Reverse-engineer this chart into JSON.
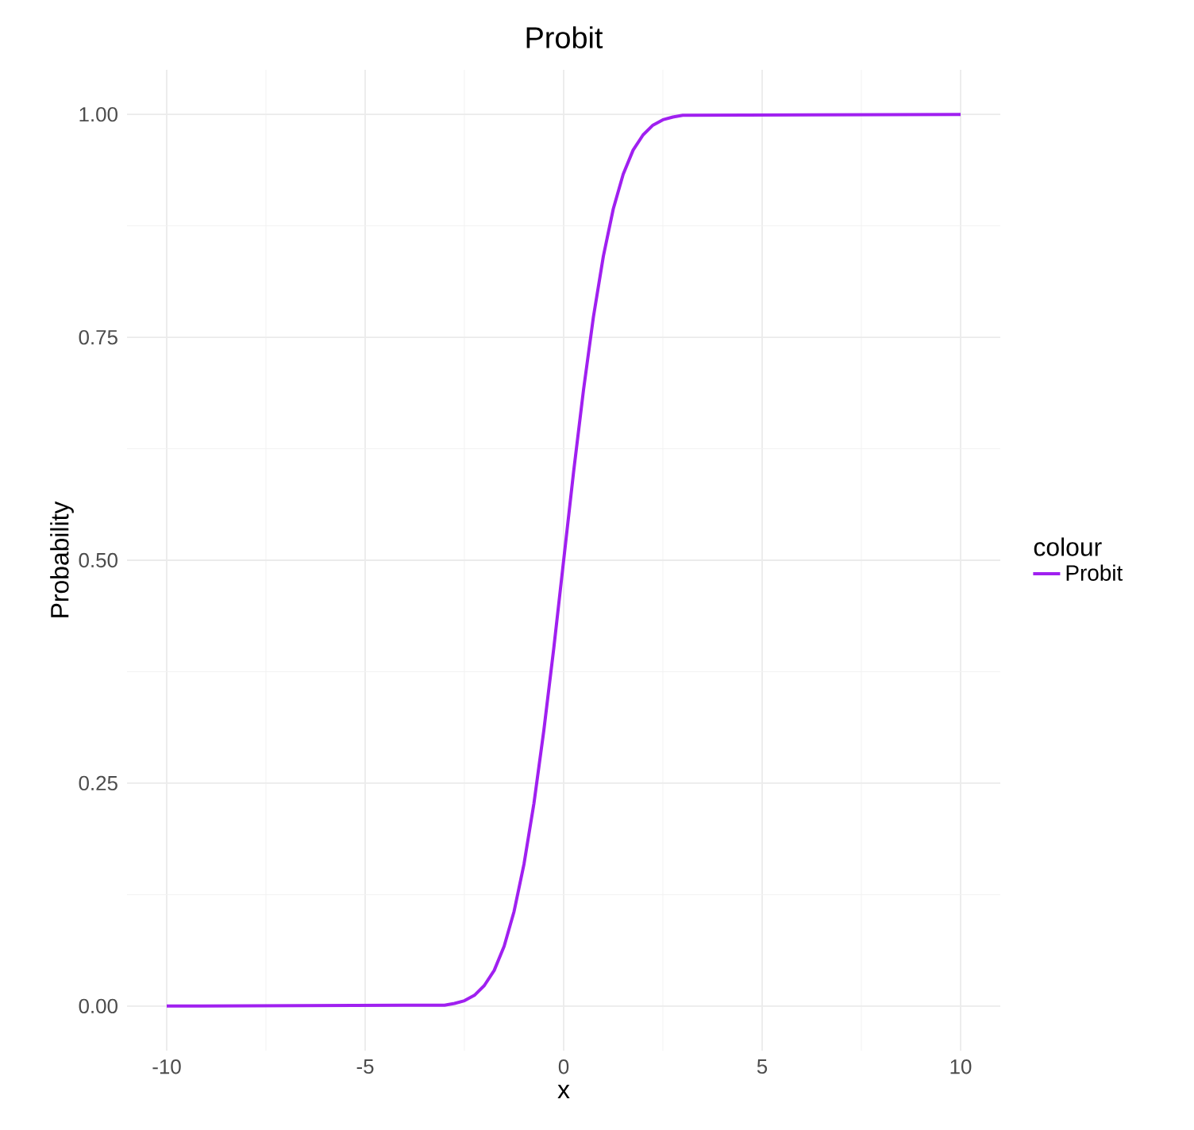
{
  "chart_data": {
    "type": "line",
    "title": "Probit",
    "xlabel": "x",
    "ylabel": "Probability",
    "legend_title": "colour",
    "xlim": [
      -11,
      11
    ],
    "ylim": [
      -0.05,
      1.05
    ],
    "xticks": [
      -10,
      -5,
      0,
      5,
      10
    ],
    "yticks": [
      {
        "value": 0,
        "label": "0.00"
      },
      {
        "value": 0.25,
        "label": "0.25"
      },
      {
        "value": 0.5,
        "label": "0.50"
      },
      {
        "value": 0.75,
        "label": "0.75"
      },
      {
        "value": 1,
        "label": "1.00"
      }
    ],
    "grid": true,
    "legend": "right",
    "marker": "none",
    "line_style": "solid",
    "series": [
      {
        "name": "Probit",
        "color": "#a020f0",
        "x": [
          -10,
          -3,
          -2.75,
          -2.5,
          -2.25,
          -2,
          -1.75,
          -1.5,
          -1.25,
          -1,
          -0.75,
          -0.5,
          -0.25,
          0,
          0.25,
          0.5,
          0.75,
          1,
          1.25,
          1.5,
          1.75,
          2,
          2.25,
          2.5,
          2.75,
          3,
          10
        ],
        "values": [
          0,
          0.001,
          0.003,
          0.006,
          0.012,
          0.023,
          0.04,
          0.067,
          0.106,
          0.159,
          0.227,
          0.309,
          0.401,
          0.5,
          0.599,
          0.691,
          0.773,
          0.841,
          0.894,
          0.933,
          0.96,
          0.977,
          0.988,
          0.994,
          0.997,
          0.999,
          1
        ]
      }
    ]
  }
}
